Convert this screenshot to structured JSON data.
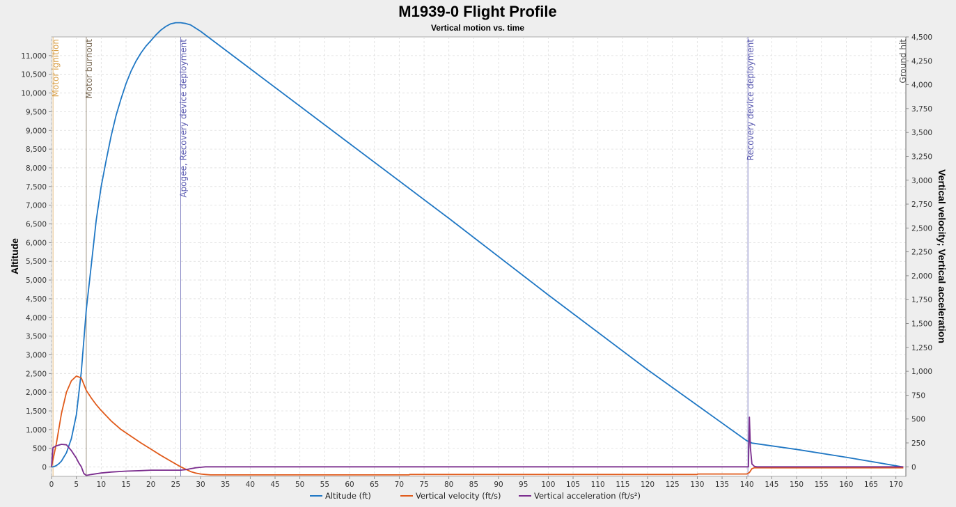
{
  "chart_data": {
    "type": "line",
    "title": "M1939-0 Flight Profile",
    "subtitle": "Vertical motion vs. time",
    "ylabel_left": "Altitude",
    "ylabel_right": "Vertical velocity; Vertical acceleration",
    "xlim": [
      0,
      172
    ],
    "ylim_left": [
      -250,
      11500
    ],
    "ylim_right": [
      -100,
      4500
    ],
    "x_ticks": [
      0,
      5,
      10,
      15,
      20,
      25,
      30,
      35,
      40,
      45,
      50,
      55,
      60,
      65,
      70,
      75,
      80,
      85,
      90,
      95,
      100,
      105,
      110,
      115,
      120,
      125,
      130,
      135,
      140,
      145,
      150,
      155,
      160,
      165,
      170
    ],
    "y_ticks_left": [
      0,
      500,
      1000,
      1500,
      2000,
      2500,
      3000,
      3500,
      4000,
      4500,
      5000,
      5500,
      6000,
      6500,
      7000,
      7500,
      8000,
      8500,
      9000,
      9500,
      10000,
      10500,
      11000
    ],
    "y_tick_labels_left": [
      "0",
      "500",
      "1,000",
      "1,500",
      "2,000",
      "2,500",
      "3,000",
      "3,500",
      "4,000",
      "4,500",
      "5,000",
      "5,500",
      "6,000",
      "6,500",
      "7,000",
      "7,500",
      "8,000",
      "8,500",
      "9,000",
      "9,500",
      "10,000",
      "10,500",
      "11,000"
    ],
    "y_ticks_right": [
      0,
      250,
      500,
      750,
      1000,
      1250,
      1500,
      1750,
      2000,
      2250,
      2500,
      2750,
      3000,
      3250,
      3500,
      3750,
      4000,
      4250,
      4500
    ],
    "y_tick_labels_right": [
      "0",
      "250",
      "500",
      "750",
      "1,000",
      "1,250",
      "1,500",
      "1,750",
      "2,000",
      "2,250",
      "2,500",
      "2,750",
      "3,000",
      "3,250",
      "3,500",
      "3,750",
      "4,000",
      "4,250",
      "4,500"
    ],
    "grid": true,
    "legend_position": "bottom",
    "series": [
      {
        "name": "Altitude (ft)",
        "axis": "left",
        "color": "#1f77c4",
        "x": [
          0,
          0.5,
          1,
          1.5,
          2,
          3,
          4,
          5,
          6,
          7,
          8,
          9,
          10,
          11,
          12,
          13,
          14,
          15,
          16,
          17,
          18,
          19,
          20,
          21,
          22,
          23,
          24,
          25,
          26,
          27,
          28,
          30,
          40,
          60,
          80,
          100,
          120,
          140,
          140.5,
          141,
          150,
          160,
          171.5
        ],
        "y": [
          0,
          10,
          40,
          90,
          160,
          380,
          760,
          1400,
          2550,
          4200,
          5400,
          6600,
          7500,
          8200,
          8850,
          9400,
          9850,
          10250,
          10580,
          10850,
          11070,
          11250,
          11400,
          11550,
          11680,
          11780,
          11850,
          11880,
          11880,
          11860,
          11820,
          11650,
          10650,
          8650,
          6650,
          4600,
          2600,
          700,
          680,
          640,
          470,
          260,
          0
        ]
      },
      {
        "name": "Vertical velocity (ft/s)",
        "axis": "right",
        "color": "#e05a1a",
        "x": [
          0,
          1,
          2,
          3,
          4,
          5,
          6,
          7,
          8,
          9,
          10,
          12,
          14,
          16,
          18,
          20,
          22,
          24,
          25,
          26,
          27,
          28,
          29,
          30,
          31,
          32,
          40,
          60,
          72,
          72.1,
          100,
          130,
          130.1,
          140,
          140.5,
          141,
          141.5,
          145,
          171.5
        ],
        "y": [
          0,
          250,
          560,
          780,
          900,
          950,
          930,
          800,
          720,
          650,
          590,
          480,
          390,
          320,
          250,
          185,
          120,
          60,
          30,
          0,
          -25,
          -50,
          -65,
          -75,
          -80,
          -85,
          -85,
          -85,
          -85,
          -80,
          -80,
          -80,
          -75,
          -75,
          -60,
          -20,
          -10,
          -10,
          -10
        ]
      },
      {
        "name": "Vertical acceleration (ft/s²)",
        "axis": "right",
        "color": "#7b2d8e",
        "x": [
          0,
          0.3,
          1,
          2,
          3,
          4,
          5,
          5.5,
          6,
          6.5,
          7,
          8,
          10,
          12,
          15,
          18,
          20,
          22,
          24,
          25,
          26,
          27,
          28,
          29,
          30,
          31,
          32,
          50,
          80,
          110,
          140,
          140.3,
          140.5,
          140.7,
          141,
          141.5,
          142,
          171.5
        ],
        "y": [
          0,
          200,
          220,
          235,
          230,
          170,
          90,
          40,
          0,
          -70,
          -90,
          -80,
          -65,
          -55,
          -45,
          -40,
          -35,
          -35,
          -35,
          -35,
          -35,
          -30,
          -20,
          -10,
          -5,
          0,
          0,
          0,
          0,
          0,
          0,
          0,
          520,
          200,
          30,
          5,
          0,
          0
        ]
      }
    ],
    "events": [
      {
        "label": "Motor ignition",
        "x": 0.3,
        "color": "#d9a04a"
      },
      {
        "label": "Motor burnout",
        "x": 7.0,
        "color": "#7a6a55"
      },
      {
        "label": "Apogee, Recovery device deployment",
        "x": 26.0,
        "color": "#5a5ab0"
      },
      {
        "label": "Recovery device deployment",
        "x": 140.2,
        "color": "#5a5ab0"
      },
      {
        "label": "Ground hit",
        "x": 172.0,
        "color": "#555555"
      }
    ]
  }
}
